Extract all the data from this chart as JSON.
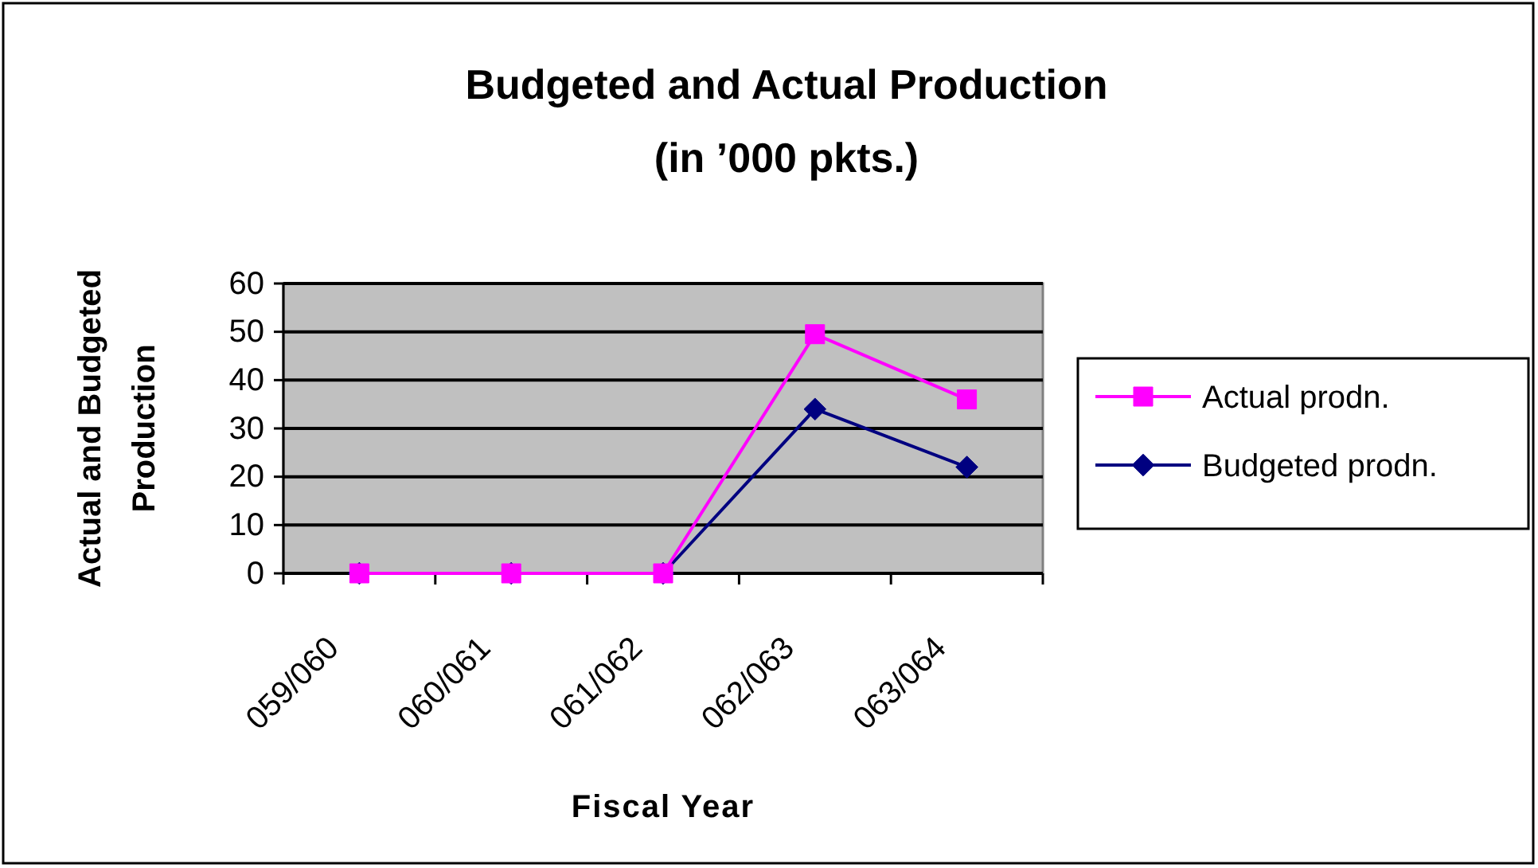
{
  "chart_data": {
    "type": "line",
    "title": "Budgeted and Actual Production\n(in ’000 pkts.)",
    "xlabel": "Fiscal Year",
    "ylabel": "Actual and Budgeted\nProduction",
    "categories": [
      "059/060",
      "060/061",
      "061/062",
      "062/063",
      "063/064"
    ],
    "series": [
      {
        "name": "Actual prodn.",
        "color": "#ff00ff",
        "marker": "square",
        "values": [
          0,
          0,
          0,
          49.5,
          36
        ]
      },
      {
        "name": "Budgeted prodn.",
        "color": "#000080",
        "marker": "diamond",
        "values": [
          0,
          0,
          0,
          34,
          22
        ]
      }
    ],
    "ylim": [
      0,
      60
    ],
    "yticks": [
      0,
      10,
      20,
      30,
      40,
      50,
      60
    ],
    "grid": "y",
    "legend": "right"
  }
}
